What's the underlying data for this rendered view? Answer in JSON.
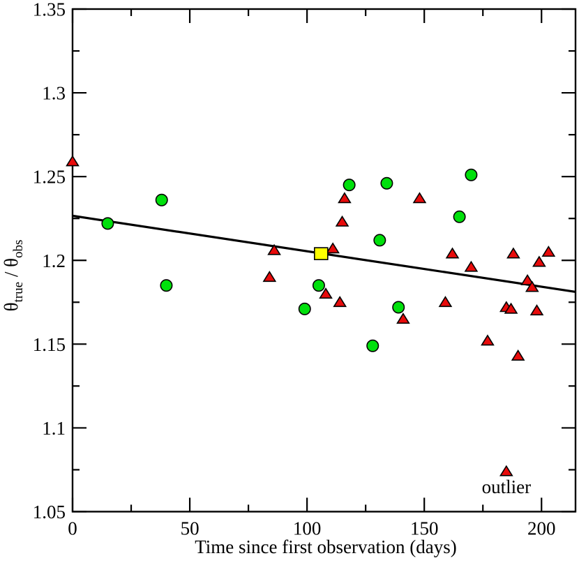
{
  "chart_data": {
    "type": "scatter",
    "title": "",
    "xlabel": "Time since first observation (days)",
    "ylabel": "theta_true / theta_obs",
    "ylabel_parts": [
      {
        "text": "θ",
        "sub": false
      },
      {
        "text": "true",
        "sub": true
      },
      {
        "text": " / θ",
        "sub": false
      },
      {
        "text": "obs",
        "sub": true
      }
    ],
    "xlim": [
      0,
      214.5
    ],
    "ylim": [
      1.05,
      1.35
    ],
    "x_major_ticks": [
      0,
      50,
      100,
      150,
      200
    ],
    "x_major_tick_labels": [
      "0",
      "50",
      "100",
      "150",
      "200"
    ],
    "x_minor_ticks": [
      25,
      75,
      125,
      175
    ],
    "y_major_ticks": [
      1.05,
      1.1,
      1.15,
      1.2,
      1.25,
      1.3,
      1.35
    ],
    "y_major_tick_labels": [
      "1.05",
      "1.1",
      "1.15",
      "1.2",
      "1.25",
      "1.3",
      "1.35"
    ],
    "y_minor_ticks": [
      1.075,
      1.125,
      1.175,
      1.225,
      1.275,
      1.325
    ],
    "grid": false,
    "legend": "none",
    "frame": "box-with-mirrored-inward-ticks",
    "series": [
      {
        "name": "green-circles",
        "marker": "circle",
        "color": "#00e00c",
        "edge_color": "#000000",
        "points": [
          [
            15,
            1.222
          ],
          [
            38,
            1.236
          ],
          [
            40,
            1.185
          ],
          [
            99,
            1.171
          ],
          [
            105,
            1.185
          ],
          [
            118,
            1.245
          ],
          [
            128,
            1.149
          ],
          [
            131,
            1.212
          ],
          [
            134,
            1.246
          ],
          [
            139,
            1.172
          ],
          [
            165,
            1.226
          ],
          [
            170,
            1.251
          ]
        ]
      },
      {
        "name": "red-triangles",
        "marker": "triangle",
        "color": "#e80b0b",
        "edge_color": "#000000",
        "points": [
          [
            0,
            1.259
          ],
          [
            84,
            1.19
          ],
          [
            86,
            1.206
          ],
          [
            108,
            1.18
          ],
          [
            111,
            1.207
          ],
          [
            114,
            1.175
          ],
          [
            115,
            1.223
          ],
          [
            116,
            1.237
          ],
          [
            141,
            1.165
          ],
          [
            148,
            1.237
          ],
          [
            159,
            1.175
          ],
          [
            162,
            1.204
          ],
          [
            170,
            1.196
          ],
          [
            177,
            1.152
          ],
          [
            185,
            1.172
          ],
          [
            187,
            1.171
          ],
          [
            188,
            1.204
          ],
          [
            190,
            1.143
          ],
          [
            194,
            1.188
          ],
          [
            196,
            1.184
          ],
          [
            198,
            1.17
          ],
          [
            199,
            1.199
          ],
          [
            203,
            1.205
          ],
          [
            185,
            1.074
          ]
        ]
      },
      {
        "name": "yellow-square",
        "marker": "square",
        "color": "#ffff00",
        "edge_color": "#000000",
        "points": [
          [
            106,
            1.204
          ]
        ]
      }
    ],
    "trend_line": {
      "color": "#000000",
      "x1": 0,
      "y1": 1.2266,
      "x2": 214.5,
      "y2": 1.1812
    },
    "annotation": {
      "text": "outlier",
      "x": 185,
      "y": 1.0648,
      "color": "#000000"
    }
  }
}
